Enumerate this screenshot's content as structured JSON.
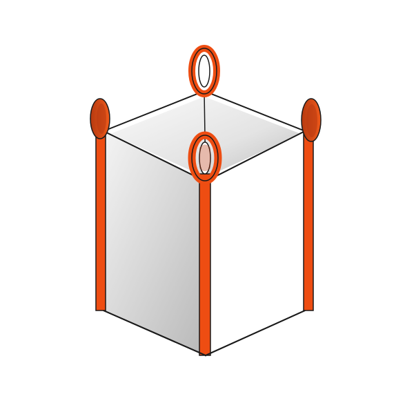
{
  "image": {
    "subject": "bulk-bag-with-lifting-loops-illustration",
    "colors": {
      "background": "#ffffff",
      "strap_orange": "#ee4d12",
      "strap_orange_dark": "#b83a12",
      "outline": "#1a1a1a",
      "left_panel_light": "#f2f2f2",
      "left_panel_shadow": "#bdbdbd",
      "top_interior_light": "#f6f6f6",
      "top_interior_shadow": "#bcbcbc",
      "right_panel": "#ffffff"
    },
    "icons": [
      "lifting-loop-icon",
      "bag-panel-icon"
    ]
  }
}
